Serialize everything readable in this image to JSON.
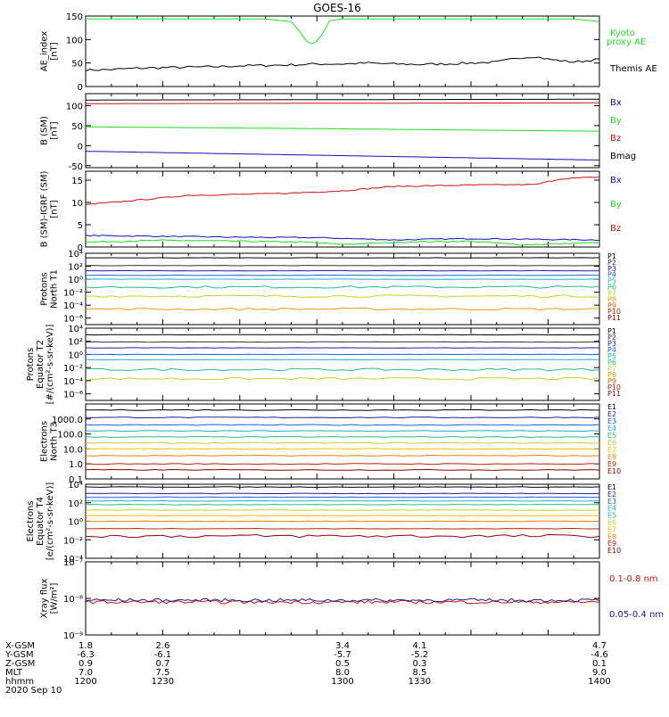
{
  "title": "GOES-16",
  "colors": {
    "black": "#000000",
    "blue": "#1010c0",
    "green": "#1edc1e",
    "red": "#d01010",
    "kyoto": "#22dd22",
    "dark_blue": "#1a1aa0"
  },
  "chart_data": [
    {
      "id": "ae",
      "type": "line",
      "ylabel": [
        "AE_index",
        "[nT]"
      ],
      "ylim": [
        0,
        150
      ],
      "yticks": [
        "150",
        "100",
        "50",
        "0"
      ],
      "series": [
        {
          "name": "Kyoto",
          "name2": "proxy AE",
          "color": "#22dd22",
          "x": [
            1200,
            1240,
            1270,
            1280,
            1283,
            1286,
            1289,
            1292,
            1295,
            1300,
            1330,
            1390,
            1400
          ],
          "values": [
            144,
            144,
            144,
            138,
            120,
            95,
            90,
            110,
            140,
            144,
            144,
            144,
            138
          ]
        },
        {
          "name": "Themis AE",
          "color": "#000000",
          "x": [
            1200,
            1210,
            1220,
            1230,
            1240,
            1250,
            1260,
            1270,
            1280,
            1290,
            1300,
            1310,
            1320,
            1330,
            1340,
            1350,
            1360,
            1370,
            1375,
            1380,
            1385,
            1390,
            1395,
            1400
          ],
          "values": [
            35,
            36,
            39,
            40,
            41,
            42,
            44,
            45,
            46,
            48,
            48,
            50,
            48,
            47,
            48,
            50,
            52,
            62,
            64,
            58,
            55,
            52,
            55,
            58
          ]
        }
      ]
    },
    {
      "id": "bsm",
      "type": "line",
      "ylabel": [
        "B (SM)",
        "[nT]"
      ],
      "ylim": [
        -55,
        130
      ],
      "yticks": [
        "100",
        "50",
        "0",
        "-50"
      ],
      "ytick_values": [
        100,
        50,
        0,
        -50
      ],
      "series": [
        {
          "name": "Bx",
          "color": "#1010c0",
          "x": [
            1200,
            1400
          ],
          "values": [
            -14,
            -36
          ]
        },
        {
          "name": "By",
          "color": "#1edc1e",
          "x": [
            1200,
            1300,
            1400
          ],
          "values": [
            47,
            42,
            36
          ]
        },
        {
          "name": "Bz",
          "color": "#d01010",
          "x": [
            1200,
            1400
          ],
          "values": [
            105,
            107
          ]
        },
        {
          "name": "Bmag",
          "color": "#000000",
          "x": [
            1200,
            1400
          ],
          "values": [
            114,
            116
          ]
        }
      ]
    },
    {
      "id": "bigrf",
      "type": "line",
      "ylabel": [
        "B (SM)-IGRF (SM)",
        "[nT]"
      ],
      "ylim": [
        0,
        17
      ],
      "yticks": [
        "15",
        "10",
        "5",
        "0"
      ],
      "ytick_values": [
        15,
        10,
        5,
        0
      ],
      "series": [
        {
          "name": "Bx",
          "color": "#1010c0",
          "x": [
            1200,
            1230,
            1260,
            1290,
            1320,
            1350,
            1380,
            1400
          ],
          "values": [
            2.6,
            2.4,
            2.2,
            2.1,
            1.6,
            1.9,
            1.7,
            1.6
          ]
        },
        {
          "name": "By",
          "color": "#1edc1e",
          "x": [
            1200,
            1230,
            1260,
            1285,
            1300,
            1330,
            1350,
            1370,
            1400
          ],
          "values": [
            1.1,
            1.5,
            1.3,
            1.1,
            0.6,
            1.2,
            1.3,
            0.5,
            1.0
          ]
        },
        {
          "name": "Bz",
          "color": "#d01010",
          "x": [
            1200,
            1220,
            1240,
            1260,
            1280,
            1300,
            1320,
            1350,
            1375,
            1385,
            1400
          ],
          "values": [
            9.5,
            10.5,
            11.6,
            11.8,
            12.1,
            12.6,
            13.6,
            13.9,
            14.0,
            15.3,
            15.7
          ]
        }
      ]
    },
    {
      "id": "protons_t1",
      "type": "line",
      "ylabel": [
        "Protons",
        "North T1"
      ],
      "log": true,
      "ylim_exp": [
        -7,
        4
      ],
      "yticks": [
        "10⁴",
        "10²",
        "10⁰",
        "10⁻²",
        "10⁻⁴",
        "10⁻⁶"
      ],
      "series": [
        {
          "name": "P1",
          "color": "#000000",
          "level": 3.3
        },
        {
          "name": "P2",
          "color": "#333333",
          "level": 2.1
        },
        {
          "name": "P3",
          "color": "#2020a0",
          "level": 1.3
        },
        {
          "name": "P4",
          "color": "#2060e0",
          "level": 0.6
        },
        {
          "name": "P5",
          "color": "#20b0d0",
          "level": 0.0
        },
        {
          "name": "P6",
          "color": "#20c080",
          "level": -1.2
        },
        {
          "name": "P7",
          "color": "#c8d020",
          "level": -2.6
        },
        {
          "name": "P8",
          "color": "#f0a000",
          "level": -4.6
        },
        {
          "name": "P9",
          "color": "#d06000",
          "level": null
        },
        {
          "name": "P10",
          "color": "#c02000",
          "level": null
        },
        {
          "name": "P11",
          "color": "#900000",
          "level": null
        }
      ]
    },
    {
      "id": "protons_t2",
      "type": "line",
      "ylabel": [
        "Protons",
        "Equator T2",
        "[#/(cm²-s-sr-keV)]"
      ],
      "log": true,
      "ylim_exp": [
        -7,
        4
      ],
      "yticks": [
        "10⁴",
        "10²",
        "10⁰",
        "10⁻²",
        "10⁻⁴",
        "10⁻⁶"
      ],
      "series": [
        {
          "name": "P1",
          "color": "#000000",
          "level": 3.0
        },
        {
          "name": "P2",
          "color": "#333333",
          "level": 1.9
        },
        {
          "name": "P3",
          "color": "#2020a0",
          "level": 1.0
        },
        {
          "name": "P4",
          "color": "#2060e0",
          "level": 0.0
        },
        {
          "name": "P5",
          "color": "#20b0d0",
          "level": -0.8
        },
        {
          "name": "P6",
          "color": "#20c080",
          "level": -2.3
        },
        {
          "name": "P7",
          "color": "#c8d020",
          "level": -3.7
        },
        {
          "name": "P8",
          "color": "#f0a000",
          "level": null
        },
        {
          "name": "P9",
          "color": "#d06000",
          "level": null
        },
        {
          "name": "P10",
          "color": "#c02000",
          "level": null
        },
        {
          "name": "P11",
          "color": "#900000",
          "level": null
        }
      ]
    },
    {
      "id": "electrons_t3",
      "type": "line",
      "ylabel": [
        "Electrons",
        "North T3"
      ],
      "log": true,
      "ylim_exp": [
        -1,
        4
      ],
      "yticks": [
        "1000.0",
        "100.0",
        "10.0",
        "1.0",
        "0.1"
      ],
      "ytick_exp": [
        3,
        2,
        1,
        0,
        -1
      ],
      "series": [
        {
          "name": "E1",
          "color": "#000000",
          "level": 3.6
        },
        {
          "name": "E2",
          "color": "#2020a0",
          "level": 3.1
        },
        {
          "name": "E3",
          "color": "#2060e0",
          "level": 2.6
        },
        {
          "name": "E4",
          "color": "#20b0d0",
          "level": 2.2
        },
        {
          "name": "E5",
          "color": "#20c080",
          "level": 1.8
        },
        {
          "name": "E6",
          "color": "#c8d020",
          "level": 1.4
        },
        {
          "name": "E7",
          "color": "#f0c000",
          "level": 1.0
        },
        {
          "name": "E8",
          "color": "#f08000",
          "level": 0.55
        },
        {
          "name": "E9",
          "color": "#c02000",
          "level": 0.0
        },
        {
          "name": "E10",
          "color": "#900000",
          "level": -0.4
        }
      ]
    },
    {
      "id": "electrons_t4",
      "type": "line",
      "ylabel": [
        "Electrons",
        "Equator T4",
        "[e/(cm²-s-sr-keV)]"
      ],
      "log": true,
      "ylim_exp": [
        -4,
        4
      ],
      "yticks": [
        "10⁴",
        "10²",
        "10⁰",
        "10⁻²",
        "10⁻⁴"
      ],
      "series": [
        {
          "name": "E1",
          "color": "#000000",
          "level": 3.7
        },
        {
          "name": "E2",
          "color": "#2020a0",
          "level": 3.0
        },
        {
          "name": "E3",
          "color": "#2060e0",
          "level": 2.6
        },
        {
          "name": "E4",
          "color": "#20b0d0",
          "level": 2.2
        },
        {
          "name": "E5",
          "color": "#20c080",
          "level": 1.8
        },
        {
          "name": "E6",
          "color": "#c8d020",
          "level": 1.2
        },
        {
          "name": "E7",
          "color": "#f0c000",
          "level": 0.6
        },
        {
          "name": "E8",
          "color": "#f08000",
          "level": 0.0
        },
        {
          "name": "E9",
          "color": "#c02000",
          "level": -0.8
        },
        {
          "name": "E10",
          "color": "#900000",
          "level": -1.6
        }
      ]
    },
    {
      "id": "xray",
      "type": "line",
      "ylabel": [
        "Xray flux",
        "[W/m²]"
      ],
      "log": true,
      "ylim_exp": [
        -9,
        -7
      ],
      "yticks": [
        "10⁻⁷",
        "10⁻⁸",
        "10⁻⁹"
      ],
      "series": [
        {
          "name": "0.1-0.8 nm",
          "color": "#d01010",
          "level": -8.1
        },
        {
          "name": "0.05-0.4 nm",
          "color": "#1a1aa0",
          "level": -8.05
        }
      ]
    }
  ],
  "time_axis": {
    "rows": [
      {
        "label": "X-GSM",
        "values": [
          "1.8",
          "2.6",
          "3.4",
          "4.1",
          "4.7"
        ]
      },
      {
        "label": "Y-GSM",
        "values": [
          "-6.3",
          "-6.1",
          "-5.7",
          "-5.2",
          "-4.6"
        ]
      },
      {
        "label": "Z-GSM",
        "values": [
          "0.9",
          "0.7",
          "0.5",
          "0.3",
          "0.1"
        ]
      },
      {
        "label": "MLT",
        "values": [
          "7.0",
          "7.5",
          "8.0",
          "8.5",
          "9.0"
        ]
      },
      {
        "label": "hhmm",
        "values": [
          "1200",
          "1230",
          "1300",
          "1330",
          "1400"
        ]
      }
    ],
    "date": "2020 Sep 10"
  }
}
